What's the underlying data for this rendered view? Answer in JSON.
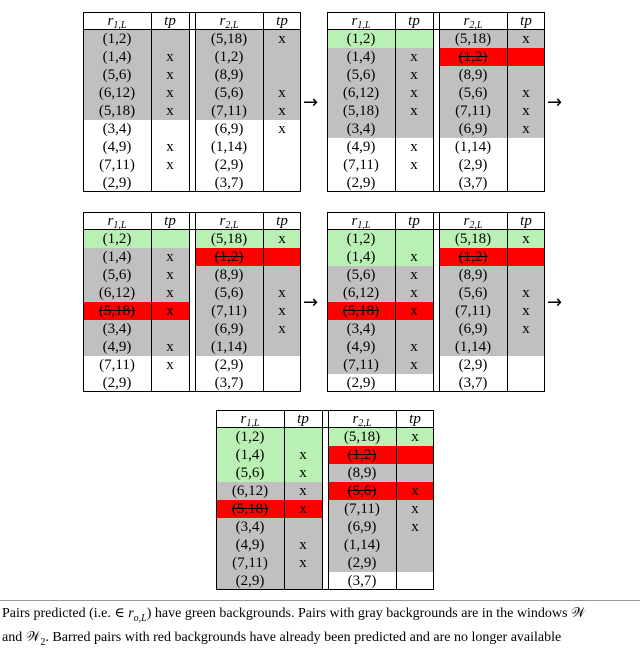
{
  "headers": {
    "r1": "r",
    "r1_sub": "1,L",
    "r2": "r",
    "r2_sub": "2,L",
    "tp": "tp"
  },
  "panels": [
    {
      "left": [
        {
          "pair": "(1,2)",
          "tp": "",
          "bg": "s",
          "barred": false
        },
        {
          "pair": "(1,4)",
          "tp": "x",
          "bg": "s",
          "barred": false
        },
        {
          "pair": "(5,6)",
          "tp": "x",
          "bg": "s",
          "barred": false
        },
        {
          "pair": "(6,12)",
          "tp": "x",
          "bg": "s",
          "barred": false
        },
        {
          "pair": "(5,18)",
          "tp": "x",
          "bg": "s",
          "barred": false
        },
        {
          "pair": "(3,4)",
          "tp": "",
          "bg": "",
          "barred": false
        },
        {
          "pair": "(4,9)",
          "tp": "x",
          "bg": "",
          "barred": false
        },
        {
          "pair": "(7,11)",
          "tp": "x",
          "bg": "",
          "barred": false
        },
        {
          "pair": "(2,9)",
          "tp": "",
          "bg": "",
          "barred": false
        }
      ],
      "right": [
        {
          "pair": "(5,18)",
          "tp": "x",
          "bg": "s",
          "barred": false
        },
        {
          "pair": "(1,2)",
          "tp": "",
          "bg": "s",
          "barred": false
        },
        {
          "pair": "(8,9)",
          "tp": "",
          "bg": "s",
          "barred": false
        },
        {
          "pair": "(5,6)",
          "tp": "x",
          "bg": "s",
          "barred": false
        },
        {
          "pair": "(7,11)",
          "tp": "x",
          "bg": "s",
          "barred": false
        },
        {
          "pair": "(6,9)",
          "tp": "x",
          "bg": "",
          "barred": false
        },
        {
          "pair": "(1,14)",
          "tp": "",
          "bg": "",
          "barred": false
        },
        {
          "pair": "(2,9)",
          "tp": "",
          "bg": "",
          "barred": false
        },
        {
          "pair": "(3,7)",
          "tp": "",
          "bg": "",
          "barred": false
        }
      ]
    },
    {
      "left": [
        {
          "pair": "(1,2)",
          "tp": "",
          "bg": "g",
          "barred": false
        },
        {
          "pair": "(1,4)",
          "tp": "x",
          "bg": "s",
          "barred": false
        },
        {
          "pair": "(5,6)",
          "tp": "x",
          "bg": "s",
          "barred": false
        },
        {
          "pair": "(6,12)",
          "tp": "x",
          "bg": "s",
          "barred": false
        },
        {
          "pair": "(5,18)",
          "tp": "x",
          "bg": "s",
          "barred": false
        },
        {
          "pair": "(3,4)",
          "tp": "",
          "bg": "s",
          "barred": false
        },
        {
          "pair": "(4,9)",
          "tp": "x",
          "bg": "",
          "barred": false
        },
        {
          "pair": "(7,11)",
          "tp": "x",
          "bg": "",
          "barred": false
        },
        {
          "pair": "(2,9)",
          "tp": "",
          "bg": "",
          "barred": false
        }
      ],
      "right": [
        {
          "pair": "(5,18)",
          "tp": "x",
          "bg": "s",
          "barred": false
        },
        {
          "pair": "(1,2)",
          "tp": "",
          "bg": "r",
          "barred": true
        },
        {
          "pair": "(8,9)",
          "tp": "",
          "bg": "s",
          "barred": false
        },
        {
          "pair": "(5,6)",
          "tp": "x",
          "bg": "s",
          "barred": false
        },
        {
          "pair": "(7,11)",
          "tp": "x",
          "bg": "s",
          "barred": false
        },
        {
          "pair": "(6,9)",
          "tp": "x",
          "bg": "s",
          "barred": false
        },
        {
          "pair": "(1,14)",
          "tp": "",
          "bg": "",
          "barred": false
        },
        {
          "pair": "(2,9)",
          "tp": "",
          "bg": "",
          "barred": false
        },
        {
          "pair": "(3,7)",
          "tp": "",
          "bg": "",
          "barred": false
        }
      ]
    },
    {
      "left": [
        {
          "pair": "(1,2)",
          "tp": "",
          "bg": "g",
          "barred": false
        },
        {
          "pair": "(1,4)",
          "tp": "x",
          "bg": "s",
          "barred": false
        },
        {
          "pair": "(5,6)",
          "tp": "x",
          "bg": "s",
          "barred": false
        },
        {
          "pair": "(6,12)",
          "tp": "x",
          "bg": "s",
          "barred": false
        },
        {
          "pair": "(5,18)",
          "tp": "x",
          "bg": "r",
          "barred": true
        },
        {
          "pair": "(3,4)",
          "tp": "",
          "bg": "s",
          "barred": false
        },
        {
          "pair": "(4,9)",
          "tp": "x",
          "bg": "s",
          "barred": false
        },
        {
          "pair": "(7,11)",
          "tp": "x",
          "bg": "",
          "barred": false
        },
        {
          "pair": "(2,9)",
          "tp": "",
          "bg": "",
          "barred": false
        }
      ],
      "right": [
        {
          "pair": "(5,18)",
          "tp": "x",
          "bg": "g",
          "barred": false
        },
        {
          "pair": "(1,2)",
          "tp": "",
          "bg": "r",
          "barred": true
        },
        {
          "pair": "(8,9)",
          "tp": "",
          "bg": "s",
          "barred": false
        },
        {
          "pair": "(5,6)",
          "tp": "x",
          "bg": "s",
          "barred": false
        },
        {
          "pair": "(7,11)",
          "tp": "x",
          "bg": "s",
          "barred": false
        },
        {
          "pair": "(6,9)",
          "tp": "x",
          "bg": "s",
          "barred": false
        },
        {
          "pair": "(1,14)",
          "tp": "",
          "bg": "s",
          "barred": false
        },
        {
          "pair": "(2,9)",
          "tp": "",
          "bg": "",
          "barred": false
        },
        {
          "pair": "(3,7)",
          "tp": "",
          "bg": "",
          "barred": false
        }
      ]
    },
    {
      "left": [
        {
          "pair": "(1,2)",
          "tp": "",
          "bg": "g",
          "barred": false
        },
        {
          "pair": "(1,4)",
          "tp": "x",
          "bg": "g",
          "barred": false
        },
        {
          "pair": "(5,6)",
          "tp": "x",
          "bg": "s",
          "barred": false
        },
        {
          "pair": "(6,12)",
          "tp": "x",
          "bg": "s",
          "barred": false
        },
        {
          "pair": "(5,18)",
          "tp": "x",
          "bg": "r",
          "barred": true
        },
        {
          "pair": "(3,4)",
          "tp": "",
          "bg": "s",
          "barred": false
        },
        {
          "pair": "(4,9)",
          "tp": "x",
          "bg": "s",
          "barred": false
        },
        {
          "pair": "(7,11)",
          "tp": "x",
          "bg": "s",
          "barred": false
        },
        {
          "pair": "(2,9)",
          "tp": "",
          "bg": "",
          "barred": false
        }
      ],
      "right": [
        {
          "pair": "(5,18)",
          "tp": "x",
          "bg": "g",
          "barred": false
        },
        {
          "pair": "(1,2)",
          "tp": "",
          "bg": "r",
          "barred": true
        },
        {
          "pair": "(8,9)",
          "tp": "",
          "bg": "s",
          "barred": false
        },
        {
          "pair": "(5,6)",
          "tp": "x",
          "bg": "s",
          "barred": false
        },
        {
          "pair": "(7,11)",
          "tp": "x",
          "bg": "s",
          "barred": false
        },
        {
          "pair": "(6,9)",
          "tp": "x",
          "bg": "s",
          "barred": false
        },
        {
          "pair": "(1,14)",
          "tp": "",
          "bg": "s",
          "barred": false
        },
        {
          "pair": "(2,9)",
          "tp": "",
          "bg": "",
          "barred": false
        },
        {
          "pair": "(3,7)",
          "tp": "",
          "bg": "",
          "barred": false
        }
      ]
    },
    {
      "left": [
        {
          "pair": "(1,2)",
          "tp": "",
          "bg": "g",
          "barred": false
        },
        {
          "pair": "(1,4)",
          "tp": "x",
          "bg": "g",
          "barred": false
        },
        {
          "pair": "(5,6)",
          "tp": "x",
          "bg": "g",
          "barred": false
        },
        {
          "pair": "(6,12)",
          "tp": "x",
          "bg": "s",
          "barred": false
        },
        {
          "pair": "(5,18)",
          "tp": "x",
          "bg": "r",
          "barred": true
        },
        {
          "pair": "(3,4)",
          "tp": "",
          "bg": "s",
          "barred": false
        },
        {
          "pair": "(4,9)",
          "tp": "x",
          "bg": "s",
          "barred": false
        },
        {
          "pair": "(7,11)",
          "tp": "x",
          "bg": "s",
          "barred": false
        },
        {
          "pair": "(2,9)",
          "tp": "",
          "bg": "s",
          "barred": false
        }
      ],
      "right": [
        {
          "pair": "(5,18)",
          "tp": "x",
          "bg": "g",
          "barred": false
        },
        {
          "pair": "(1,2)",
          "tp": "",
          "bg": "r",
          "barred": true
        },
        {
          "pair": "(8,9)",
          "tp": "",
          "bg": "s",
          "barred": false
        },
        {
          "pair": "(5,6)",
          "tp": "x",
          "bg": "r",
          "barred": true
        },
        {
          "pair": "(7,11)",
          "tp": "x",
          "bg": "s",
          "barred": false
        },
        {
          "pair": "(6,9)",
          "tp": "x",
          "bg": "s",
          "barred": false
        },
        {
          "pair": "(1,14)",
          "tp": "",
          "bg": "s",
          "barred": false
        },
        {
          "pair": "(2,9)",
          "tp": "",
          "bg": "s",
          "barred": false
        },
        {
          "pair": "(3,7)",
          "tp": "",
          "bg": "",
          "barred": false
        }
      ]
    }
  ],
  "arrows": [
    "→",
    "→",
    "→",
    "→"
  ],
  "caption": {
    "line1_a": "Pairs predicted (i.e. ∈ ",
    "line1_math": "r",
    "line1_math_sub": "o,L",
    "line1_b": ") have green backgrounds. Pairs with gray backgrounds are in the windows ",
    "w1": "𝒲",
    "line2_a": "and ",
    "w2": "𝒲",
    "w2_sub": "2",
    "line2_b": ". Barred pairs with red backgrounds have already been predicted and are no longer available"
  },
  "colors": {
    "predicted": "#b9f0b3",
    "window": "#c0c0c0",
    "barred": "#ff0000"
  }
}
